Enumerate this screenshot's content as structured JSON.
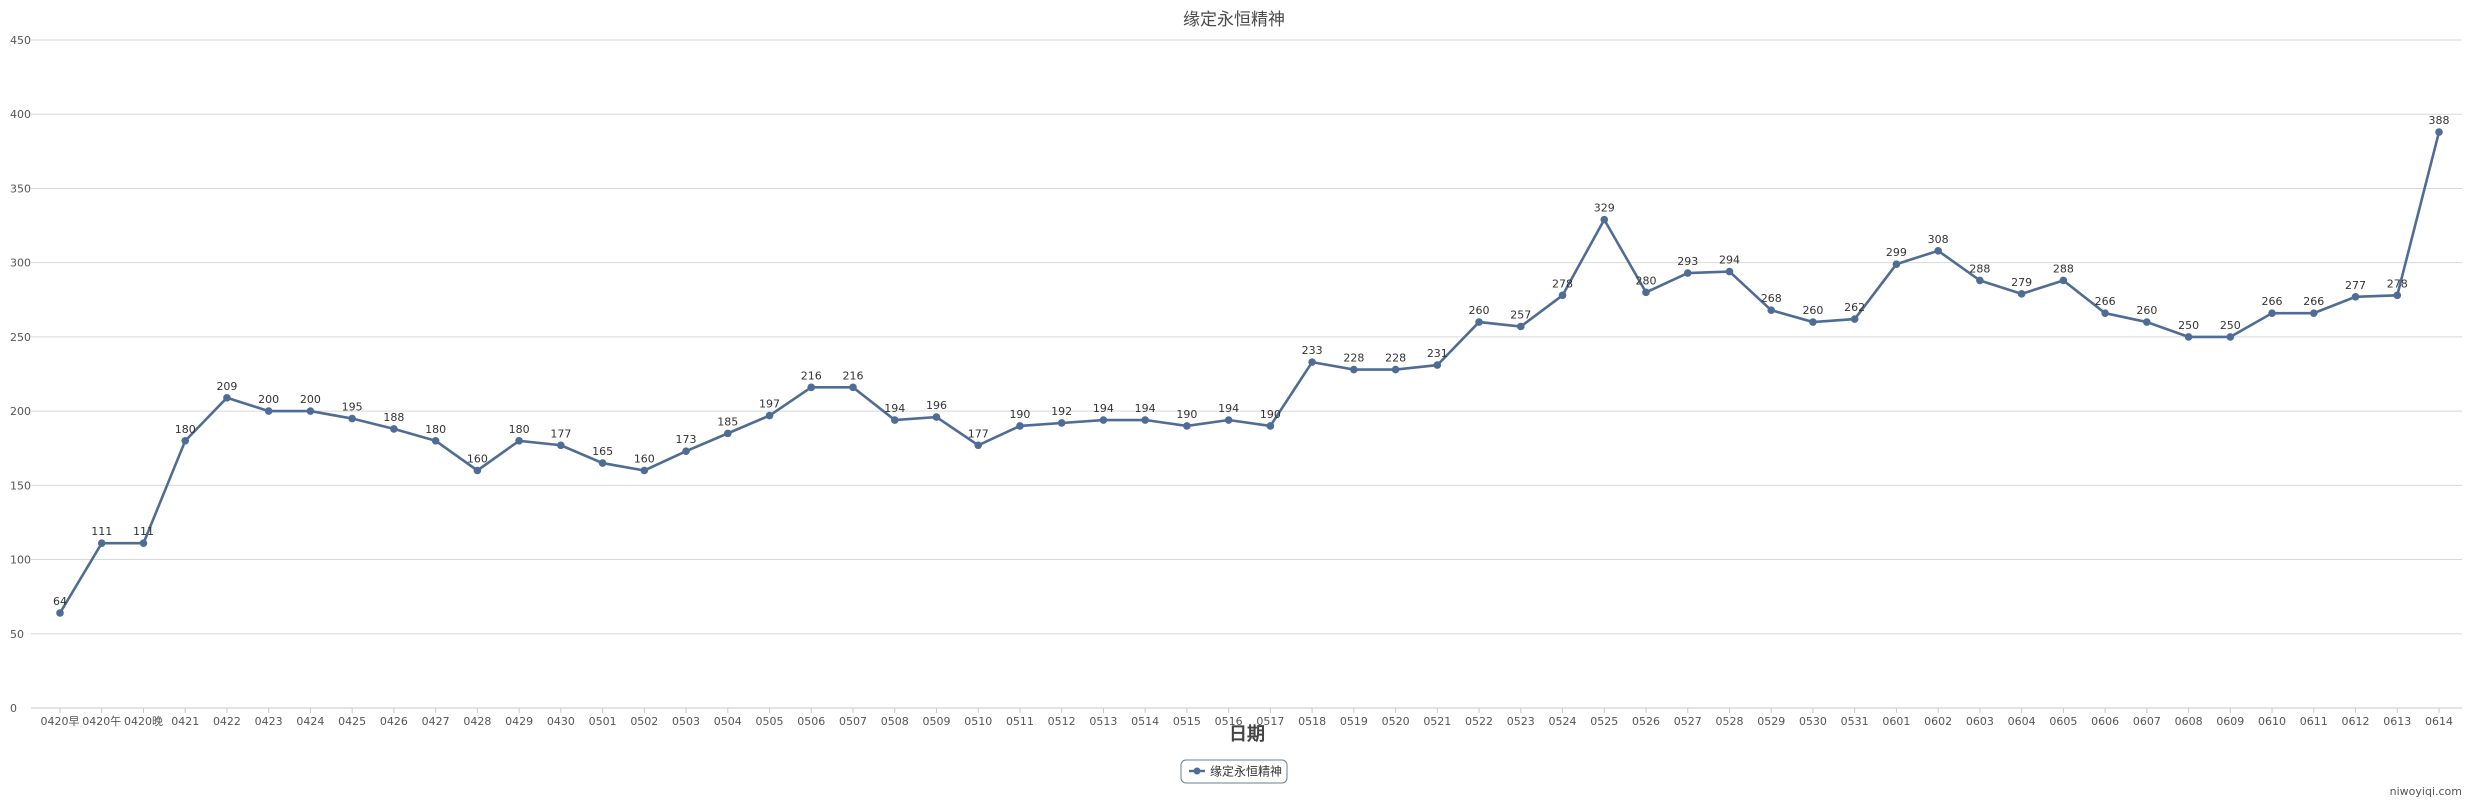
{
  "chart_data": {
    "type": "line",
    "title": "缘定永恒精神",
    "xlabel": "日期",
    "ylabel": "",
    "ylim": [
      0,
      450
    ],
    "yticks": [
      0,
      50,
      100,
      150,
      200,
      250,
      300,
      350,
      400,
      450
    ],
    "grid": true,
    "legend_position": "bottom-center",
    "categories": [
      "0420早",
      "0420午",
      "0420晚",
      "0421",
      "0422",
      "0423",
      "0424",
      "0425",
      "0426",
      "0427",
      "0428",
      "0429",
      "0430",
      "0501",
      "0502",
      "0503",
      "0504",
      "0505",
      "0506",
      "0507",
      "0508",
      "0509",
      "0510",
      "0511",
      "0512",
      "0513",
      "0514",
      "0515",
      "0516",
      "0517",
      "0518",
      "0519",
      "0520",
      "0521",
      "0522",
      "0523",
      "0524",
      "0525",
      "0526",
      "0527",
      "0528",
      "0529",
      "0530",
      "0531",
      "0601",
      "0602",
      "0603",
      "0604",
      "0605",
      "0606",
      "0607",
      "0608",
      "0609",
      "0610",
      "0611",
      "0612",
      "0613",
      "0614"
    ],
    "series": [
      {
        "name": "缘定永恒精神",
        "color": "#4f6d94",
        "values": [
          64,
          111,
          111,
          180,
          209,
          200,
          200,
          195,
          188,
          180,
          160,
          180,
          177,
          165,
          160,
          173,
          185,
          197,
          216,
          216,
          194,
          196,
          177,
          190,
          192,
          194,
          194,
          190,
          194,
          190,
          233,
          228,
          228,
          231,
          260,
          257,
          278,
          329,
          280,
          293,
          294,
          268,
          260,
          262,
          299,
          308,
          288,
          279,
          288,
          266,
          260,
          250,
          250,
          266,
          266,
          277,
          278,
          388
        ]
      }
    ]
  },
  "watermark": "niwoyiqi.com"
}
